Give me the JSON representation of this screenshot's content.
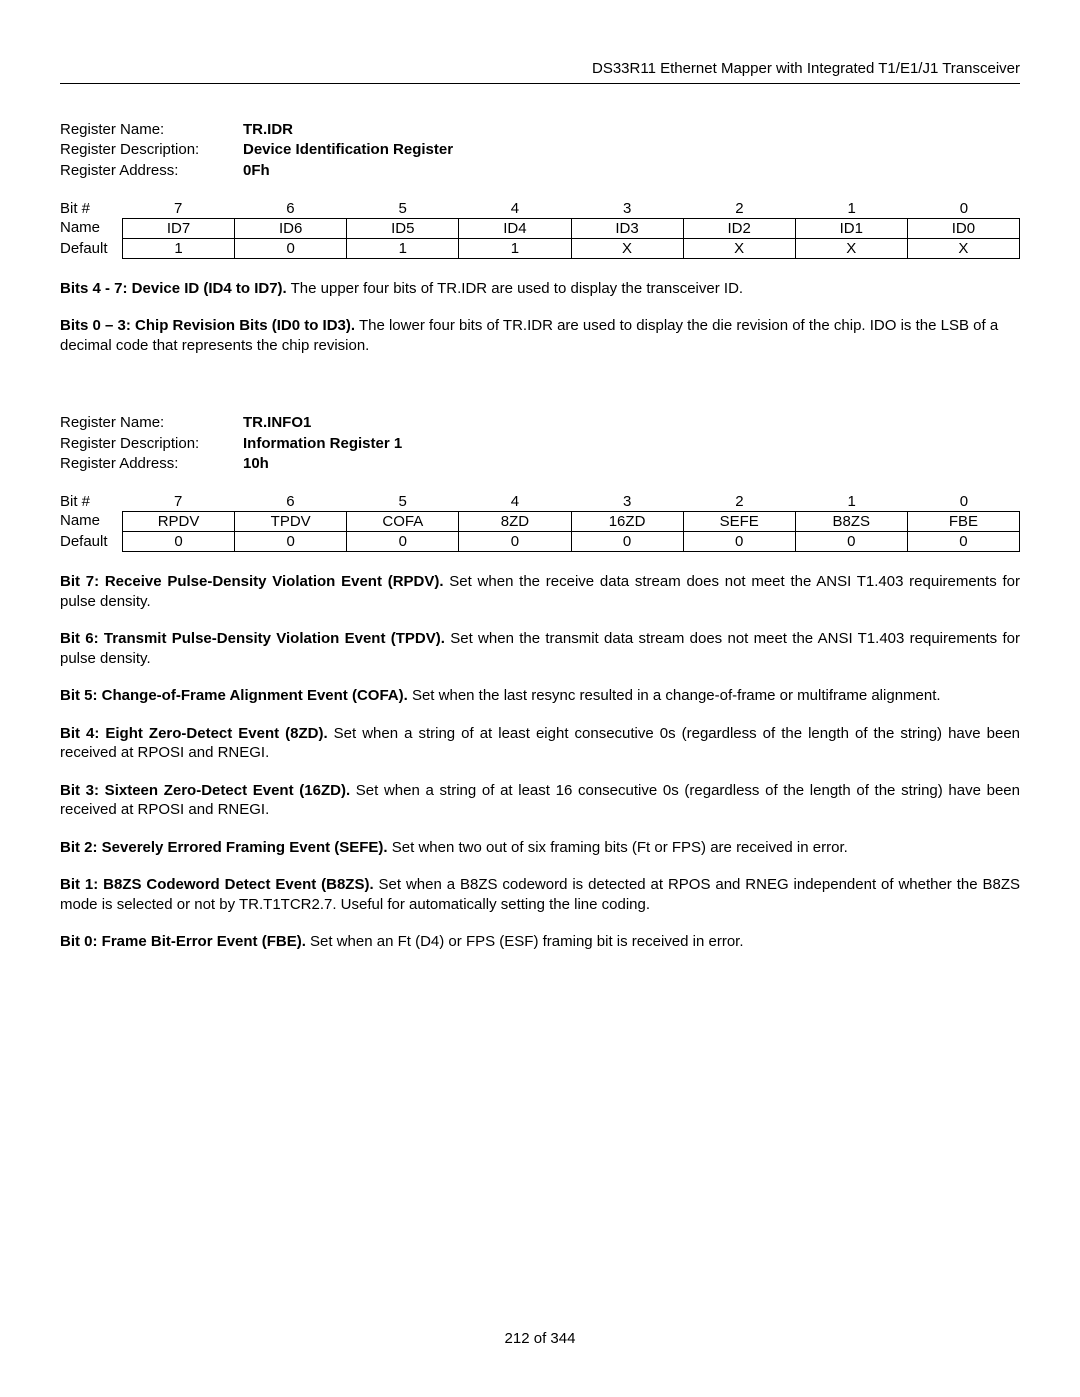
{
  "header": "DS33R11 Ethernet Mapper with Integrated T1/E1/J1 Transceiver",
  "reg1": {
    "name_label": "Register Name:",
    "name": "TR.IDR",
    "desc_label": "Register Description:",
    "desc": "Device Identification Register",
    "addr_label": "Register Address:",
    "addr": "0Fh",
    "row_bit_label": "Bit #",
    "row_name_label": "Name",
    "row_default_label": "Default",
    "bits": [
      "7",
      "6",
      "5",
      "4",
      "3",
      "2",
      "1",
      "0"
    ],
    "names": [
      "ID7",
      "ID6",
      "ID5",
      "ID4",
      "ID3",
      "ID2",
      "ID1",
      "ID0"
    ],
    "defaults": [
      "1",
      "0",
      "1",
      "1",
      "X",
      "X",
      "X",
      "X"
    ]
  },
  "reg1_desc": [
    {
      "bold": "Bits 4 -  7: Device ID (ID4 to ID7).",
      "text": " The upper four bits of TR.IDR are used to display the transceiver ID.",
      "justify": false
    },
    {
      "bold": "Bits 0 – 3: Chip Revision Bits (ID0 to ID3).",
      "text": " The lower four bits of TR.IDR are used to display the die revision of the chip. IDO is the LSB of a decimal code that represents the chip revision.",
      "justify": false
    }
  ],
  "reg2": {
    "name_label": "Register Name:",
    "name": "TR.INFO1",
    "desc_label": "Register Description:",
    "desc": "Information Register 1",
    "addr_label": "Register Address:",
    "addr": "10h",
    "row_bit_label": "Bit #",
    "row_name_label": "Name",
    "row_default_label": "Default",
    "bits": [
      "7",
      "6",
      "5",
      "4",
      "3",
      "2",
      "1",
      "0"
    ],
    "names": [
      "RPDV",
      "TPDV",
      "COFA",
      "8ZD",
      "16ZD",
      "SEFE",
      "B8ZS",
      "FBE"
    ],
    "defaults": [
      "0",
      "0",
      "0",
      "0",
      "0",
      "0",
      "0",
      "0"
    ]
  },
  "reg2_desc": [
    {
      "bold": "Bit 7: Receive Pulse-Density Violation Event (RPDV).",
      "text": " Set when the receive data stream does not meet the ANSI T1.403 requirements for pulse density.",
      "justify": true
    },
    {
      "bold": "Bit 6: Transmit Pulse-Density Violation Event (TPDV).",
      "text": " Set when the transmit data stream does not meet the ANSI T1.403 requirements for pulse density.",
      "justify": true
    },
    {
      "bold": "Bit 5: Change-of-Frame Alignment Event (COFA).",
      "text": " Set when the last resync resulted in a change-of-frame or multiframe alignment.",
      "justify": true
    },
    {
      "bold": "Bit 4: Eight Zero-Detect Event (8ZD).",
      "text": " Set when a string of at least eight consecutive 0s (regardless of the length of the string) have been received at RPOSI and RNEGI.",
      "justify": true
    },
    {
      "bold": "Bit 3: Sixteen Zero-Detect Event (16ZD).",
      "text": " Set when a string of at least 16 consecutive 0s (regardless of the length of the string) have been received at RPOSI and RNEGI.",
      "justify": true
    },
    {
      "bold": "Bit 2: Severely Errored Framing Event (SEFE).",
      "text": " Set when two out of six framing bits (Ft or FPS) are received in error.",
      "justify": true
    },
    {
      "bold": "Bit 1: B8ZS Codeword Detect Event (B8ZS).",
      "text": " Set when a B8ZS codeword is detected at RPOS and RNEG independent of whether the B8ZS mode is selected or not by TR.T1TCR2.7. Useful for automatically setting the line coding.",
      "justify": true
    },
    {
      "bold": "Bit 0: Frame Bit-Error Event (FBE).",
      "text": " Set when an Ft (D4) or FPS (ESF) framing bit is received in error.",
      "justify": false
    }
  ],
  "footer": "212 of 344"
}
